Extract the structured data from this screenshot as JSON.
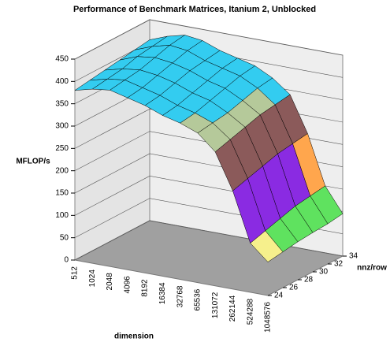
{
  "chart_data": {
    "type": "surface3d",
    "title": "Performance of Benchmark Matrices, Itanium 2, Unblocked",
    "z_label": "MFLOP/s",
    "x_label": "dimension",
    "depth_label": "nnz/row",
    "x": [
      "512",
      "1024",
      "2048",
      "4096",
      "8192",
      "16384",
      "32768",
      "65536",
      "131072",
      "262144",
      "524288",
      "1048576"
    ],
    "depth": [
      24,
      26,
      28,
      30,
      32,
      34
    ],
    "values": [
      [
        380,
        390,
        395,
        385,
        375,
        360,
        350,
        335,
        300,
        220,
        110,
        75
      ],
      [
        385,
        395,
        400,
        390,
        380,
        365,
        355,
        340,
        310,
        230,
        120,
        80
      ],
      [
        390,
        400,
        405,
        400,
        390,
        375,
        365,
        345,
        320,
        240,
        130,
        85
      ],
      [
        395,
        410,
        415,
        410,
        400,
        385,
        375,
        355,
        330,
        250,
        140,
        88
      ],
      [
        400,
        415,
        425,
        420,
        405,
        395,
        385,
        365,
        335,
        255,
        145,
        90
      ],
      [
        405,
        420,
        430,
        425,
        410,
        400,
        390,
        370,
        340,
        260,
        150,
        95
      ]
    ],
    "zlim": [
      0,
      450
    ],
    "zticks": [
      0,
      50,
      100,
      150,
      200,
      250,
      300,
      350,
      400,
      450
    ],
    "band_colors": [
      "#e83a3a",
      "#f6f08c",
      "#5fe25f",
      "#8a2be2",
      "#ffa64d",
      "#8b5a5a",
      "#b5c99a",
      "#33ccf0",
      "#33ccf0"
    ]
  }
}
